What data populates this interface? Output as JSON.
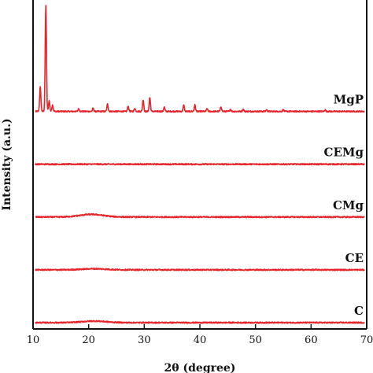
{
  "chart_data": {
    "type": "line",
    "xlabel": "2θ (degree)",
    "ylabel": "Intensity (a.u.)",
    "xlim": [
      10,
      70
    ],
    "xticks": [
      10,
      20,
      30,
      40,
      50,
      60,
      70
    ],
    "x_tick_labels": [
      "10",
      "20",
      "30",
      "40",
      "50",
      "60",
      "70"
    ],
    "y_ticks_shown": false,
    "grid": false,
    "legend": "none",
    "line_color": "#e8232a",
    "baseline_intensity": {
      "MgP": 4.0,
      "CEMg": 3.0,
      "CMg": 2.0,
      "CE": 1.0,
      "C": 0.0
    },
    "series": [
      {
        "name": "MgP",
        "baseline": 4.0,
        "peaks": [
          {
            "x": 11.3,
            "height": 0.46
          },
          {
            "x": 12.3,
            "height": 2.0
          },
          {
            "x": 12.9,
            "height": 0.2
          },
          {
            "x": 13.5,
            "height": 0.12
          },
          {
            "x": 18.2,
            "height": 0.05
          },
          {
            "x": 20.8,
            "height": 0.06
          },
          {
            "x": 23.4,
            "height": 0.14
          },
          {
            "x": 27.1,
            "height": 0.1
          },
          {
            "x": 28.3,
            "height": 0.06
          },
          {
            "x": 29.8,
            "height": 0.22
          },
          {
            "x": 31.0,
            "height": 0.26
          },
          {
            "x": 33.6,
            "height": 0.08
          },
          {
            "x": 37.1,
            "height": 0.12
          },
          {
            "x": 39.1,
            "height": 0.12
          },
          {
            "x": 41.3,
            "height": 0.05
          },
          {
            "x": 43.8,
            "height": 0.09
          },
          {
            "x": 45.5,
            "height": 0.04
          },
          {
            "x": 47.8,
            "height": 0.04
          },
          {
            "x": 52.0,
            "height": 0.03
          },
          {
            "x": 55.0,
            "height": 0.03
          },
          {
            "x": 62.5,
            "height": 0.03
          }
        ]
      },
      {
        "name": "CEMg",
        "baseline": 3.0,
        "peaks": []
      },
      {
        "name": "CMg",
        "baseline": 2.0,
        "peaks": [
          {
            "x": 20.5,
            "height": 0.05,
            "width": 3.0
          }
        ]
      },
      {
        "name": "CE",
        "baseline": 1.0,
        "peaks": [
          {
            "x": 21.0,
            "height": 0.02,
            "width": 3.0
          }
        ]
      },
      {
        "name": "C",
        "baseline": 0.0,
        "peaks": [
          {
            "x": 21.0,
            "height": 0.03,
            "width": 3.0
          }
        ]
      }
    ]
  }
}
